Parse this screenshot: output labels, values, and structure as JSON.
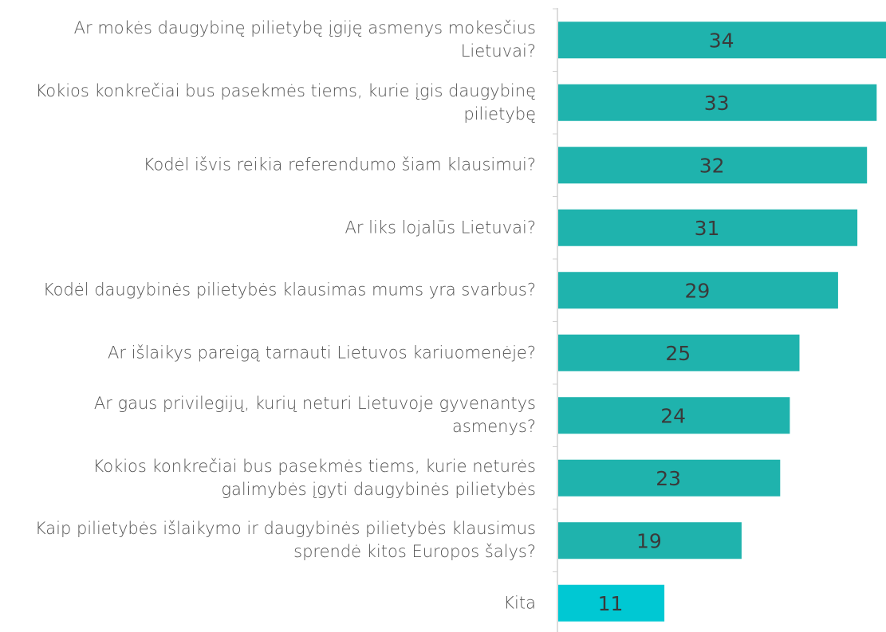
{
  "chart_data": {
    "type": "barh",
    "categories": [
      "Ar mokės daugybinę pilietybę įgiję asmenys mokesčius Lietuvai?",
      "Kokios konkrečiai bus pasekmės tiems, kurie įgis daugybinę pilietybę",
      "Kodėl išvis reikia referendumo šiam klausimui?",
      "Ar liks lojalūs Lietuvai?",
      "Kodėl daugybinės pilietybės klausimas mums yra svarbus?",
      "Ar išlaikys pareigą tarnauti Lietuvos kariuomenėje?",
      "Ar gaus privilegijų, kurių neturi Lietuvoje gyvenantys asmenys?",
      "Kokios konkrečiai bus pasekmės tiems, kurie neturės galimybės įgyti daugybinės pilietybės",
      "Kaip pilietybės išlaikymo ir daugybinės pilietybės klausimus sprendė kitos Europos šalys?",
      "Kita"
    ],
    "values": [
      34,
      33,
      32,
      31,
      29,
      25,
      24,
      23,
      19,
      11
    ],
    "colors": [
      "#1fb3ad",
      "#1fb3ad",
      "#1fb3ad",
      "#1fb3ad",
      "#1fb3ad",
      "#1fb3ad",
      "#1fb3ad",
      "#1fb3ad",
      "#1fb3ad",
      "#00c8d3"
    ]
  }
}
